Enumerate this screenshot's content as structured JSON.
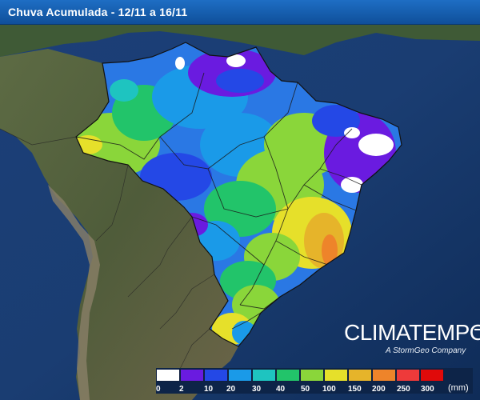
{
  "header": {
    "title": "Chuva Acumulada - 12/11 a 16/11"
  },
  "brand": {
    "name": "CLIMATEMPO",
    "tagline": "A StormGeo Company"
  },
  "legend": {
    "unit": "(mm)",
    "labels": [
      "0",
      "2",
      "10",
      "20",
      "30",
      "40",
      "50",
      "100",
      "150",
      "200",
      "250",
      "300"
    ],
    "colors": [
      "#ffffff",
      "#6a1be0",
      "#2448e6",
      "#1a9ae8",
      "#1ec4c0",
      "#22c46a",
      "#8ad63a",
      "#e6e02a",
      "#e6b42a",
      "#ee842a",
      "#ee3a3a",
      "#e00a0a"
    ]
  }
}
